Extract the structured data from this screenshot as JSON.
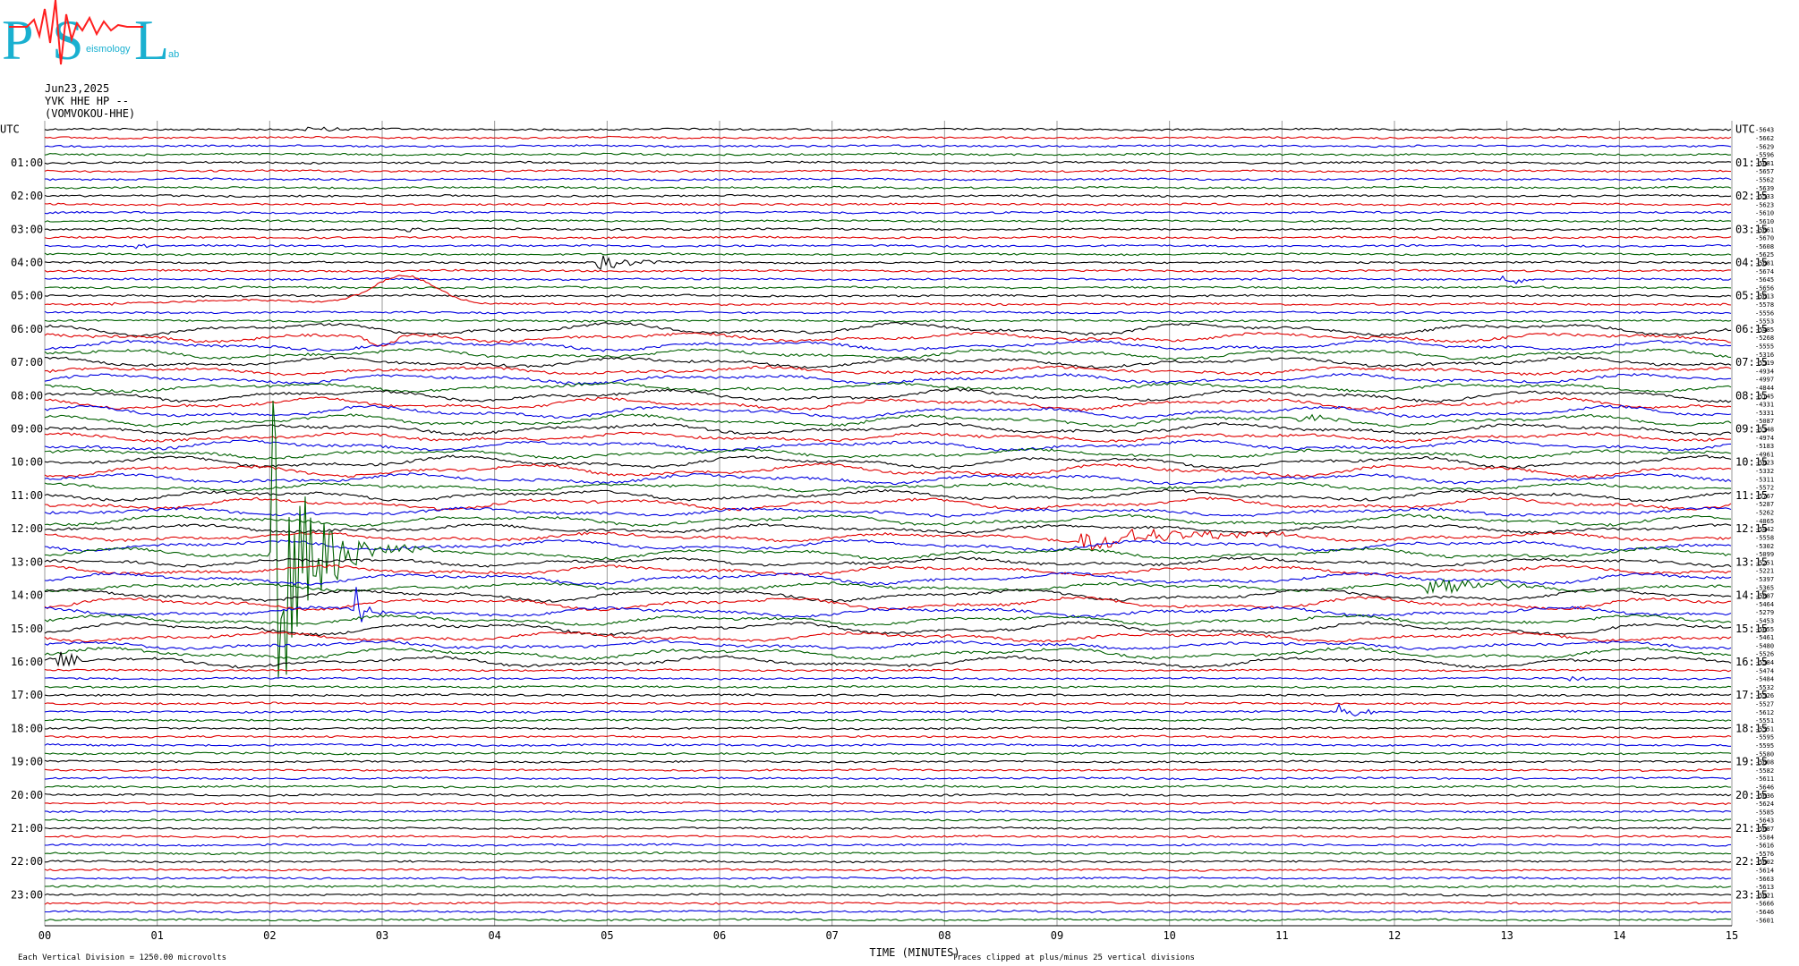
{
  "header": {
    "date": "Jun23,2025",
    "channel": "YVK HHE HP --",
    "station": "(VOMVOKOU-HHE)"
  },
  "logo": {
    "letters": [
      "P",
      "S",
      "L"
    ],
    "subtext": [
      "eismology",
      "ab"
    ],
    "colors": {
      "letters": "#1ab0d0",
      "wave": "#ff2020"
    }
  },
  "footer": {
    "scale_note": "Each Vertical Division = 1250.00 microvolts",
    "xlabel": "TIME (MINUTES)",
    "clip_note": "Traces clipped at plus/minus 25 vertical divisions"
  },
  "colors": {
    "trace_cycle": [
      "#000000",
      "#e00000",
      "#0000e0",
      "#006000"
    ],
    "grid": "#9a9a9a"
  },
  "chart_data": {
    "type": "line",
    "title": "",
    "xlabel": "TIME (MINUTES)",
    "xlim": [
      0,
      15
    ],
    "x_ticks": [
      "00",
      "01",
      "02",
      "03",
      "04",
      "05",
      "06",
      "07",
      "08",
      "09",
      "10",
      "11",
      "12",
      "13",
      "14",
      "15"
    ],
    "grid": true,
    "rows_per_hour": 4,
    "minutes_per_row": 15,
    "row_count": 96,
    "left_labels": [
      "UTC",
      "01:00",
      "02:00",
      "03:00",
      "04:00",
      "05:00",
      "06:00",
      "07:00",
      "08:00",
      "09:00",
      "10:00",
      "11:00",
      "12:00",
      "13:00",
      "14:00",
      "15:00",
      "16:00",
      "17:00",
      "18:00",
      "19:00",
      "20:00",
      "21:00",
      "22:00",
      "23:00"
    ],
    "right_labels": [
      "UTC",
      "01:15",
      "02:15",
      "03:15",
      "04:15",
      "05:15",
      "06:15",
      "07:15",
      "08:15",
      "09:15",
      "10:15",
      "11:15",
      "12:15",
      "13:15",
      "14:15",
      "15:15",
      "16:15",
      "17:15",
      "18:15",
      "19:15",
      "20:15",
      "21:15",
      "22:15",
      "23:15"
    ],
    "row_offsets": [
      "-5643",
      "-5662",
      "-5629",
      "-5596",
      "-5681",
      "-5657",
      "-5562",
      "-5639",
      "-5533",
      "-5623",
      "-5610",
      "-5610",
      "-5661",
      "-5670",
      "-5608",
      "-5625",
      "-5681",
      "-5674",
      "-5645",
      "-5656",
      "-5613",
      "-5578",
      "-5556",
      "-5553",
      "-5485",
      "-5268",
      "-5555",
      "-5316",
      "-5519",
      "-4934",
      "-4997",
      "-4844",
      "-5145",
      "-4331",
      "-5331",
      "-5087",
      "-5348",
      "-4974",
      "-5183",
      "-4961",
      "-5623",
      "-5332",
      "-5311",
      "-5572",
      "-5767",
      "-5287",
      "-5262",
      "-4865",
      "-5442",
      "-5558",
      "-5302",
      "-5099",
      "-5251",
      "-5221",
      "-5397",
      "-5365",
      "-5687",
      "-5464",
      "-5279",
      "-5453",
      "-5655",
      "-5461",
      "-5480",
      "-5526",
      "-5584",
      "-5474",
      "-5484",
      "-5532",
      "-5526",
      "-5527",
      "-5612",
      "-5551",
      "-5551",
      "-5595",
      "-5595",
      "-5580",
      "-5608",
      "-5582",
      "-5611",
      "-5646",
      "-5636",
      "-5624",
      "-5585",
      "-5643",
      "-5687",
      "-5584",
      "-5616",
      "-5576",
      "-5602",
      "-5614",
      "-5663",
      "-5613",
      "-5621",
      "-5666",
      "-5646",
      "-5601"
    ],
    "events": [
      {
        "row": 0,
        "minute": 2.3,
        "amp": 4,
        "dur": 0.35,
        "kind": "burst"
      },
      {
        "row": 12,
        "minute": 3.2,
        "amp": 5,
        "dur": 0.15,
        "kind": "burst"
      },
      {
        "row": 14,
        "minute": 0.8,
        "amp": 3,
        "dur": 0.25,
        "kind": "burst"
      },
      {
        "row": 16,
        "minute": 4.9,
        "amp": 9,
        "dur": 0.3,
        "kind": "burst"
      },
      {
        "row": 18,
        "minute": 12.95,
        "amp": 8,
        "dur": 0.2,
        "kind": "burst"
      },
      {
        "row": 21,
        "minute": 3.2,
        "amp": 32,
        "dur": 1.2,
        "kind": "surge"
      },
      {
        "row": 25,
        "minute": 3.0,
        "amp": 12,
        "dur": 0.1,
        "kind": "dip"
      },
      {
        "row": 35,
        "minute": 6.9,
        "amp": 6,
        "dur": 0.2,
        "kind": "burst"
      },
      {
        "row": 35,
        "minute": 11.1,
        "amp": 7,
        "dur": 0.2,
        "kind": "burst"
      },
      {
        "row": 49,
        "minute": 9.2,
        "amp": 14,
        "dur": 1.0,
        "kind": "burst"
      },
      {
        "row": 51,
        "minute": 2.0,
        "amp": 220,
        "dur": 0.3,
        "kind": "quake"
      },
      {
        "row": 55,
        "minute": 12.25,
        "amp": 14,
        "dur": 0.6,
        "kind": "burst"
      },
      {
        "row": 58,
        "minute": 2.75,
        "amp": 45,
        "dur": 0.25,
        "kind": "spike"
      },
      {
        "row": 64,
        "minute": 0.1,
        "amp": 12,
        "dur": 0.15,
        "kind": "burst"
      },
      {
        "row": 66,
        "minute": 13.5,
        "amp": 4,
        "dur": 0.2,
        "kind": "burst"
      },
      {
        "row": 70,
        "minute": 11.5,
        "amp": 9,
        "dur": 0.25,
        "kind": "burst"
      }
    ]
  }
}
